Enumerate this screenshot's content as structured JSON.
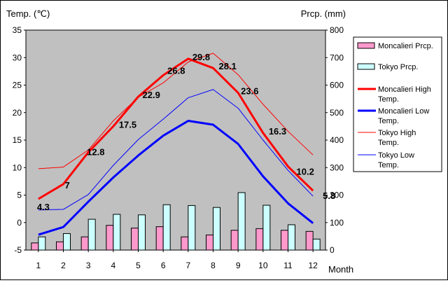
{
  "chart_data": {
    "type": "bar",
    "categories": [
      "1",
      "2",
      "3",
      "4",
      "5",
      "6",
      "7",
      "8",
      "9",
      "10",
      "11",
      "12"
    ],
    "xlabel": "Month",
    "ylabel_left": "Temp. (℃)",
    "ylabel_right": "Prcp. (mm)",
    "ylim_left": [
      -5,
      35
    ],
    "ylim_right": [
      0,
      800
    ],
    "yticks_left": [
      -5,
      0,
      5,
      10,
      15,
      20,
      25,
      30,
      35
    ],
    "yticks_right": [
      0,
      100,
      200,
      300,
      400,
      500,
      600,
      700,
      800
    ],
    "grid": "none",
    "legend_position": "right",
    "bar_series": [
      {
        "name": "Moncalieri Prcp.",
        "color": "#ff99cc",
        "values": [
          26,
          30,
          48,
          90,
          80,
          85,
          48,
          55,
          72,
          78,
          72,
          68
        ]
      },
      {
        "name": "Tokyo Prcp.",
        "color": "#ccffff",
        "values": [
          48,
          60,
          112,
          130,
          128,
          165,
          162,
          155,
          209,
          163,
          92,
          40
        ]
      }
    ],
    "line_series": [
      {
        "name": "Moncalieri High Temp.",
        "color": "#ff0000",
        "width": 3,
        "values": [
          4.3,
          7,
          12.8,
          17.5,
          22.9,
          26.8,
          29.8,
          28.1,
          23.6,
          16.3,
          10.2,
          5.8
        ],
        "labels": [
          "4.3",
          "7",
          "12.8",
          "17.5",
          "22.9",
          "26.8",
          "29.8",
          "28.1",
          "23.6",
          "16.3",
          "10.2",
          "5.8"
        ]
      },
      {
        "name": "Moncalieri Low Temp.",
        "color": "#0000ff",
        "width": 3,
        "values": [
          -2.2,
          -0.8,
          3.8,
          8.2,
          12.2,
          15.8,
          18.5,
          17.8,
          14.3,
          8.4,
          3.5,
          -0.1
        ]
      },
      {
        "name": "Tokyo High Temp.",
        "color": "#ff0000",
        "width": 1,
        "values": [
          9.8,
          10.1,
          13.2,
          18.5,
          22.8,
          25.4,
          29.2,
          30.8,
          26.9,
          21.5,
          16.6,
          12.3
        ]
      },
      {
        "name": "Tokyo Low Temp.",
        "color": "#0000ff",
        "width": 1,
        "values": [
          2.3,
          2.4,
          5.1,
          10.4,
          15.1,
          18.8,
          22.7,
          24.2,
          20.8,
          15.0,
          9.5,
          4.8
        ]
      }
    ],
    "legend": [
      {
        "kind": "bar",
        "color": "#ff99cc",
        "lines": [
          "Moncalieri Prcp."
        ]
      },
      {
        "kind": "bar",
        "color": "#ccffff",
        "lines": [
          "Tokyo Prcp."
        ]
      },
      {
        "kind": "line",
        "color": "#ff0000",
        "width": 3,
        "lines": [
          "Moncalieri High",
          "Temp."
        ]
      },
      {
        "kind": "line",
        "color": "#0000ff",
        "width": 3,
        "lines": [
          "Moncalieri Low",
          "Temp."
        ]
      },
      {
        "kind": "line",
        "color": "#ff0000",
        "width": 1,
        "lines": [
          "Tokyo High",
          "Temp."
        ]
      },
      {
        "kind": "line",
        "color": "#0000ff",
        "width": 1,
        "lines": [
          "Tokyo Low",
          "Temp."
        ]
      }
    ]
  }
}
